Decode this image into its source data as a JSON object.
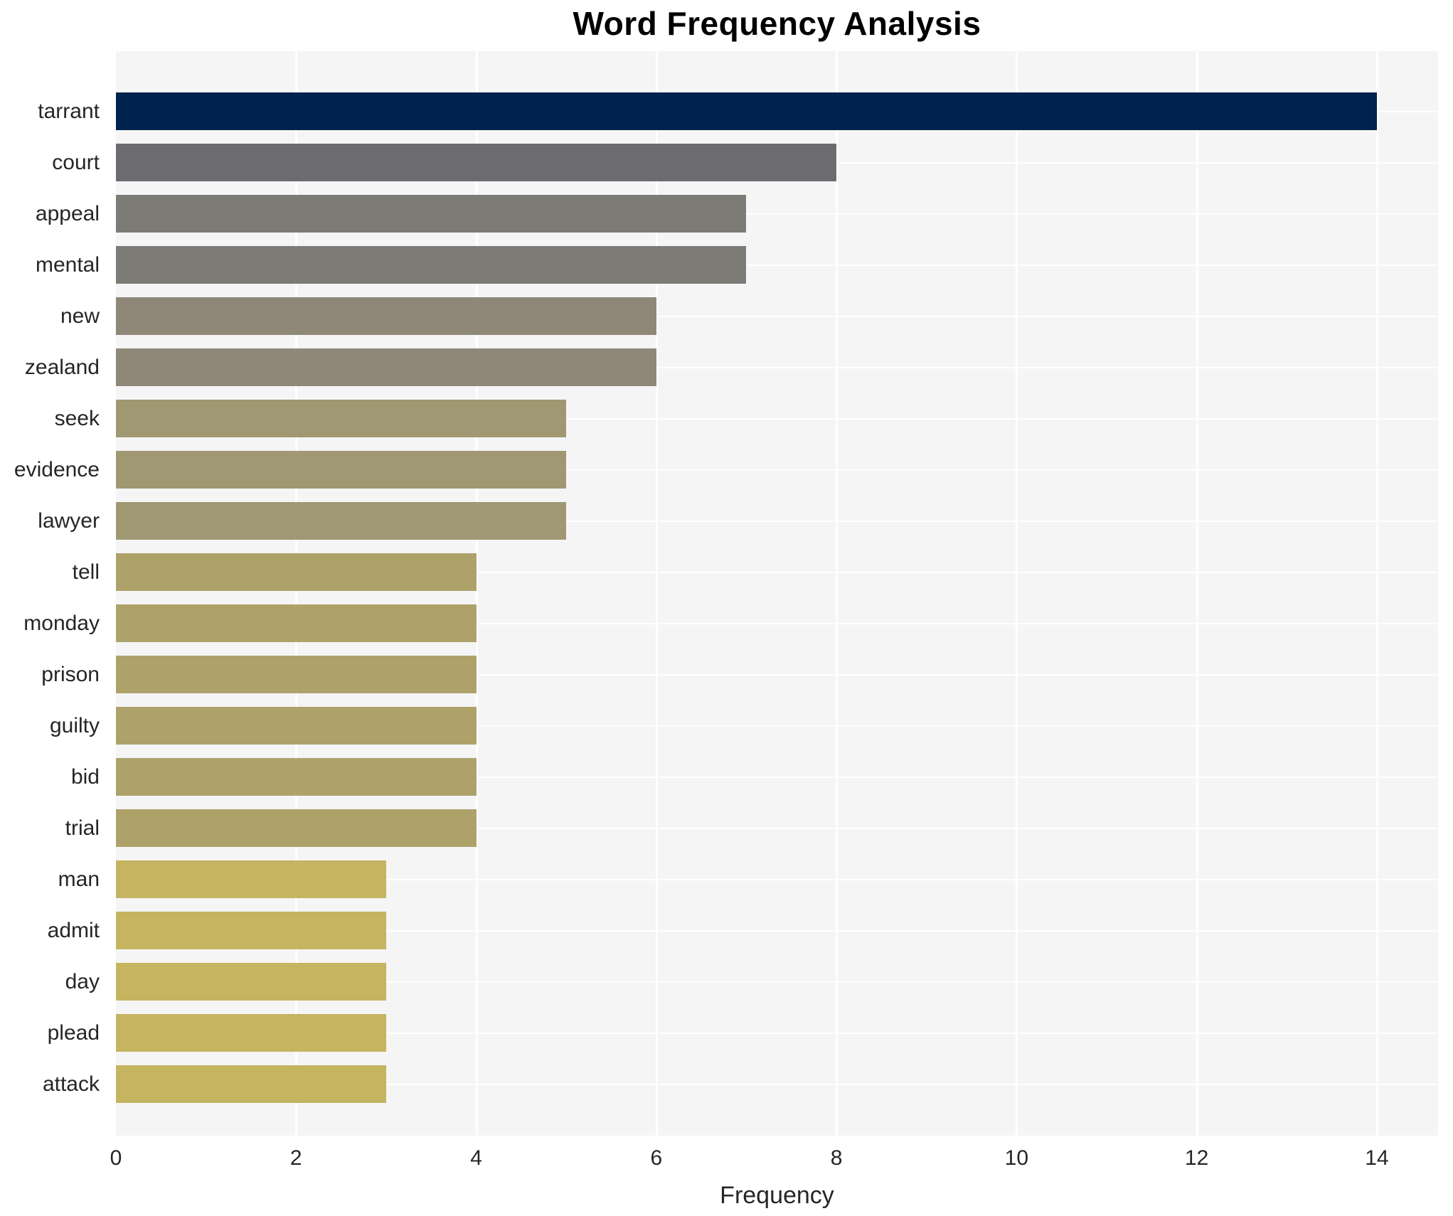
{
  "chart_data": {
    "type": "bar",
    "orientation": "horizontal",
    "title": "Word Frequency Analysis",
    "xlabel": "Frequency",
    "ylabel": "",
    "categories": [
      "tarrant",
      "court",
      "appeal",
      "mental",
      "new",
      "zealand",
      "seek",
      "evidence",
      "lawyer",
      "tell",
      "monday",
      "prison",
      "guilty",
      "bid",
      "trial",
      "man",
      "admit",
      "day",
      "plead",
      "attack"
    ],
    "values": [
      14,
      8,
      7,
      7,
      6,
      6,
      5,
      5,
      5,
      4,
      4,
      4,
      4,
      4,
      4,
      3,
      3,
      3,
      3,
      3
    ],
    "bar_colors": [
      "#00224e",
      "#6c6c70",
      "#7c7b76",
      "#7c7b76",
      "#8f8878",
      "#8f8878",
      "#a09873",
      "#a09873",
      "#a09873",
      "#aea26b",
      "#aea26b",
      "#aea26b",
      "#aea26b",
      "#aea26b",
      "#aea26b",
      "#c5b460",
      "#c5b460",
      "#c5b460",
      "#c5b460",
      "#c5b460"
    ],
    "xlim": [
      0,
      14.68
    ],
    "xticks": [
      0,
      2,
      4,
      6,
      8,
      10,
      12,
      14
    ],
    "grid": true,
    "gridline_color": "#ffffff",
    "plot_background": "#f5f5f6",
    "figure_background": "#ffffff",
    "legend": false
  }
}
